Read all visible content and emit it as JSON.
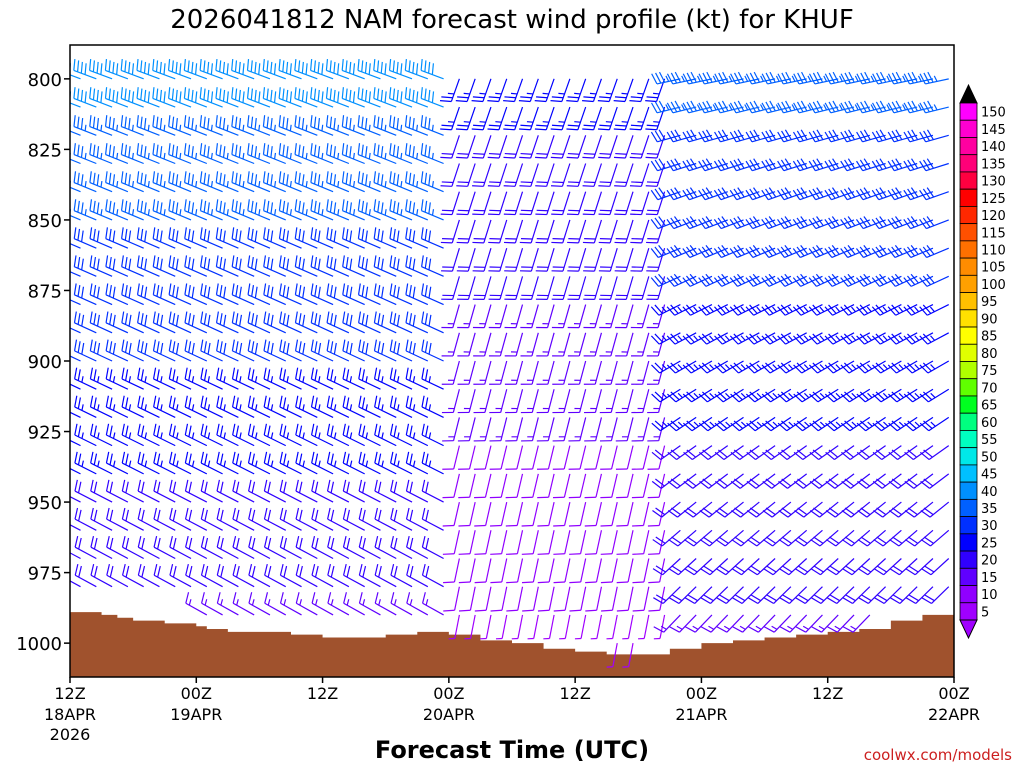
{
  "chart_data": {
    "type": "wind-barb-time-height",
    "title": "2026041812 NAM forecast wind profile (kt) for KHUF",
    "xlabel": "Forecast Time (UTC)",
    "ylabel": "",
    "credit": "coolwx.com/models",
    "units": "kt",
    "x_ticks": [
      {
        "hours": 0,
        "label": "12Z",
        "sub1": "18APR",
        "sub2": "2026"
      },
      {
        "hours": 12,
        "label": "00Z",
        "sub1": "19APR",
        "sub2": ""
      },
      {
        "hours": 24,
        "label": "12Z",
        "sub1": "",
        "sub2": ""
      },
      {
        "hours": 36,
        "label": "00Z",
        "sub1": "20APR",
        "sub2": ""
      },
      {
        "hours": 48,
        "label": "12Z",
        "sub1": "",
        "sub2": ""
      },
      {
        "hours": 60,
        "label": "00Z",
        "sub1": "21APR",
        "sub2": ""
      },
      {
        "hours": 72,
        "label": "12Z",
        "sub1": "",
        "sub2": ""
      },
      {
        "hours": 84,
        "label": "00Z",
        "sub1": "22APR",
        "sub2": ""
      }
    ],
    "xlim_hours": [
      0,
      84
    ],
    "y_ticks": [
      "800",
      "825",
      "850",
      "875",
      "900",
      "925",
      "950",
      "975",
      "1000"
    ],
    "ylim_hpa": [
      788,
      1012
    ],
    "colorbar": {
      "levels": [
        "150",
        "145",
        "140",
        "135",
        "130",
        "125",
        "120",
        "115",
        "110",
        "105",
        "100",
        "95",
        "90",
        "85",
        "80",
        "75",
        "70",
        "65",
        "60",
        "55",
        "50",
        "45",
        "40",
        "35",
        "30",
        "25",
        "20",
        "15",
        "10",
        "5"
      ],
      "colors": [
        "#ff00ff",
        "#ff00d0",
        "#ff00a0",
        "#ff0078",
        "#ff0040",
        "#ff0000",
        "#ff2800",
        "#ff5000",
        "#ff7000",
        "#ff8c00",
        "#ffa000",
        "#ffc000",
        "#ffe000",
        "#ffff00",
        "#e0ff00",
        "#b0ff00",
        "#60ff00",
        "#00ff20",
        "#00ff80",
        "#00ffc0",
        "#00e8e8",
        "#00c0ff",
        "#0090ff",
        "#0060ff",
        "#0030ff",
        "#0000ff",
        "#3000ff",
        "#6000ff",
        "#9000ff",
        "#a000ff"
      ]
    },
    "terrain_surface_hpa": [
      {
        "hours": 0,
        "p": 989
      },
      {
        "hours": 3,
        "p": 990
      },
      {
        "hours": 4.5,
        "p": 991
      },
      {
        "hours": 6,
        "p": 992
      },
      {
        "hours": 9,
        "p": 993
      },
      {
        "hours": 12,
        "p": 994
      },
      {
        "hours": 13,
        "p": 995
      },
      {
        "hours": 15,
        "p": 996
      },
      {
        "hours": 18,
        "p": 996
      },
      {
        "hours": 21,
        "p": 997
      },
      {
        "hours": 24,
        "p": 998
      },
      {
        "hours": 27,
        "p": 998
      },
      {
        "hours": 30,
        "p": 997
      },
      {
        "hours": 33,
        "p": 996
      },
      {
        "hours": 36,
        "p": 997
      },
      {
        "hours": 39,
        "p": 999
      },
      {
        "hours": 42,
        "p": 1000
      },
      {
        "hours": 45,
        "p": 1002
      },
      {
        "hours": 48,
        "p": 1003
      },
      {
        "hours": 51,
        "p": 1004
      },
      {
        "hours": 54,
        "p": 1004
      },
      {
        "hours": 57,
        "p": 1002
      },
      {
        "hours": 60,
        "p": 1000
      },
      {
        "hours": 63,
        "p": 999
      },
      {
        "hours": 66,
        "p": 998
      },
      {
        "hours": 69,
        "p": 997
      },
      {
        "hours": 72,
        "p": 996
      },
      {
        "hours": 75,
        "p": 995
      },
      {
        "hours": 78,
        "p": 992
      },
      {
        "hours": 81,
        "p": 990
      },
      {
        "hours": 84,
        "p": 989
      }
    ],
    "terrain_color": "#a0522d",
    "wind_field": {
      "time_step_hours": 1.5,
      "levels_hpa": [
        800,
        810,
        820,
        830,
        840,
        850,
        860,
        870,
        880,
        890,
        900,
        910,
        920,
        930,
        940,
        950,
        960,
        970,
        980,
        990,
        1000
      ],
      "note": "Barbs plotted only above terrain surface",
      "segments": [
        {
          "start_h": 0,
          "end_h": 36,
          "dir_low": 300,
          "dir_high": 290,
          "speed_low": 15,
          "speed_high": 40
        },
        {
          "start_h": 36,
          "end_h": 57,
          "dir_low": 190,
          "dir_high": 200,
          "speed_low": 5,
          "speed_high": 25
        },
        {
          "start_h": 57,
          "end_h": 84,
          "dir_low": 220,
          "dir_high": 260,
          "speed_low": 15,
          "speed_high": 35
        }
      ]
    }
  }
}
